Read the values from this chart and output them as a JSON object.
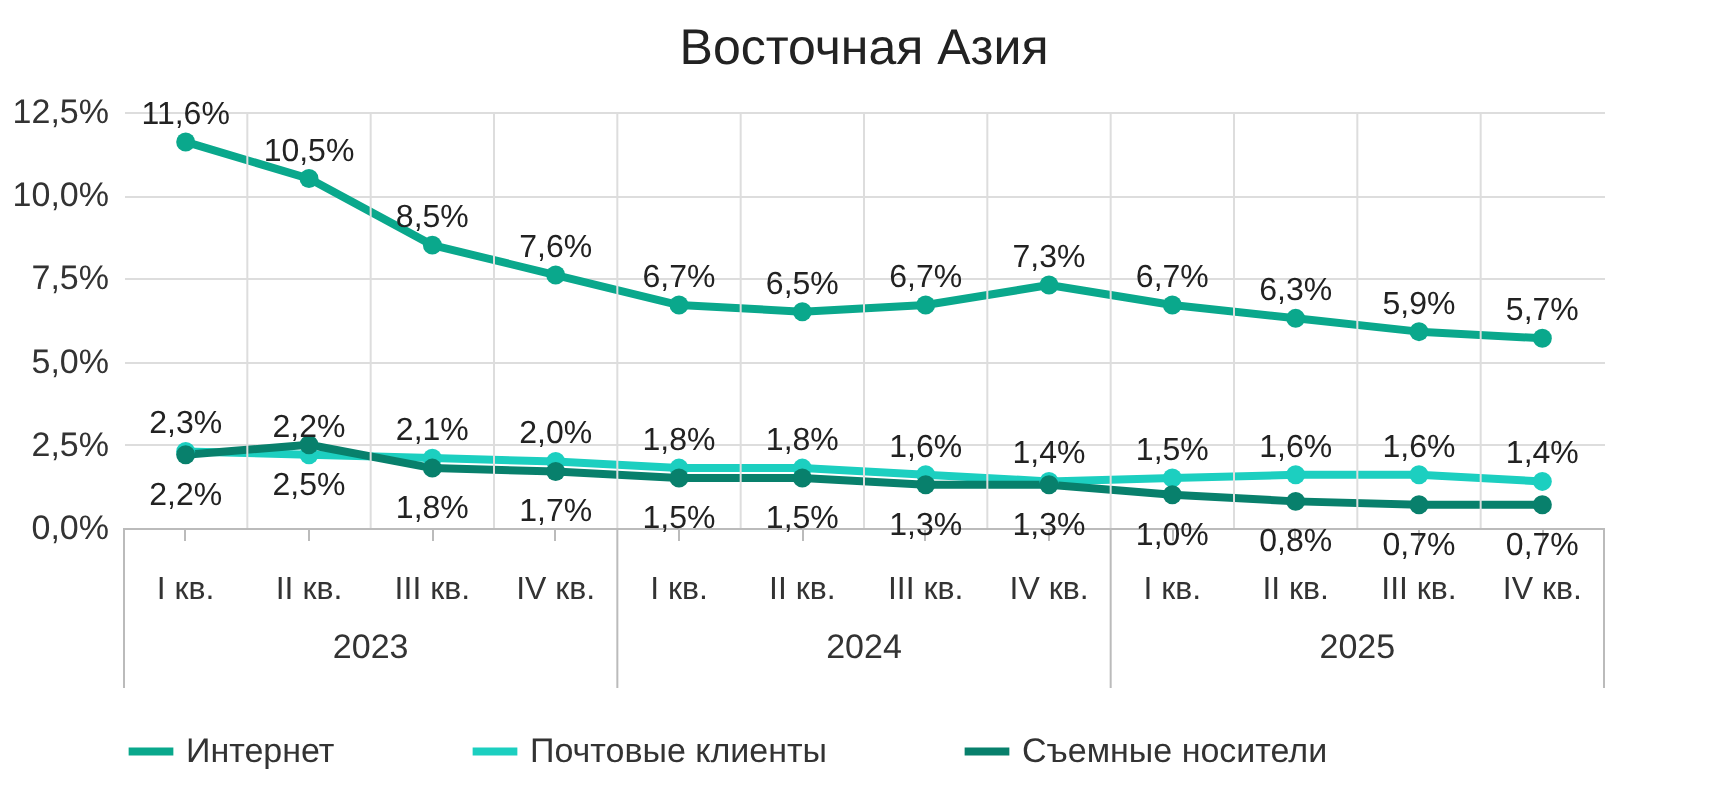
{
  "chart_data": {
    "type": "line",
    "title": "Восточная Азия",
    "categories": [
      "I кв.",
      "II кв.",
      "III кв.",
      "IV кв.",
      "I кв.",
      "II кв.",
      "III кв.",
      "IV кв.",
      "I кв.",
      "II кв.",
      "III кв.",
      "IV кв."
    ],
    "annotations": [
      "2023",
      "2024",
      "2025"
    ],
    "series": [
      {
        "name": "Интернет",
        "color": "#0aa88c",
        "values": [
          11.6,
          10.5,
          8.5,
          7.6,
          6.7,
          6.5,
          6.7,
          7.3,
          6.7,
          6.3,
          5.9,
          5.7
        ],
        "value_labels": [
          "11,6%",
          "10,5%",
          "8,5%",
          "7,6%",
          "6,7%",
          "6,5%",
          "6,7%",
          "7,3%",
          "6,7%",
          "6,3%",
          "5,9%",
          "5,7%"
        ]
      },
      {
        "name": "Почтовые клиенты",
        "color": "#1ccfc0",
        "values": [
          2.3,
          2.2,
          2.1,
          2.0,
          1.8,
          1.8,
          1.6,
          1.4,
          1.5,
          1.6,
          1.6,
          1.4
        ],
        "value_labels": [
          "2,3%",
          "2,2%",
          "2,1%",
          "2,0%",
          "1,8%",
          "1,8%",
          "1,6%",
          "1,4%",
          "1,5%",
          "1,6%",
          "1,6%",
          "1,4%"
        ]
      },
      {
        "name": "Съемные носители",
        "color": "#08806c",
        "values": [
          2.2,
          2.5,
          1.8,
          1.7,
          1.5,
          1.5,
          1.3,
          1.3,
          1.0,
          0.8,
          0.7,
          0.7
        ],
        "value_labels": [
          "2,2%",
          "2,5%",
          "1,8%",
          "1,7%",
          "1,5%",
          "1,5%",
          "1,3%",
          "1,3%",
          "1,0%",
          "0,8%",
          "0,7%",
          "0,7%"
        ]
      }
    ],
    "ylim": [
      0,
      12.5
    ],
    "yticks": [
      {
        "value": 0,
        "label": "0,0%"
      },
      {
        "value": 2.5,
        "label": "2,5%"
      },
      {
        "value": 5,
        "label": "5,0%"
      },
      {
        "value": 7.5,
        "label": "7,5%"
      },
      {
        "value": 10,
        "label": "10,0%"
      },
      {
        "value": 12.5,
        "label": "12,5%"
      }
    ],
    "grid": true,
    "legend": "bottom",
    "marker": "circle",
    "line_style": "solid"
  }
}
